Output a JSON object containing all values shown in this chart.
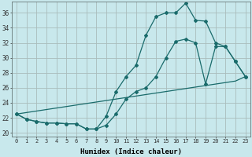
{
  "xlabel": "Humidex (Indice chaleur)",
  "xlim": [
    -0.5,
    23.5
  ],
  "ylim": [
    19.5,
    37.5
  ],
  "xticks": [
    0,
    1,
    2,
    3,
    4,
    5,
    6,
    7,
    8,
    9,
    10,
    11,
    12,
    13,
    14,
    15,
    16,
    17,
    18,
    19,
    20,
    21,
    22,
    23
  ],
  "yticks": [
    20,
    22,
    24,
    26,
    28,
    30,
    32,
    34,
    36
  ],
  "bg_color": "#c8e8ec",
  "grid_color": "#aabcbc",
  "line_color": "#1a6b6b",
  "line1_x": [
    0,
    1,
    2,
    3,
    4,
    5,
    6,
    7,
    8,
    9,
    10,
    11,
    12,
    13,
    14,
    15,
    16,
    17,
    18,
    19,
    20,
    21,
    22,
    23
  ],
  "line1_y": [
    22.5,
    21.8,
    21.5,
    21.3,
    21.3,
    21.2,
    21.2,
    20.5,
    20.5,
    22.2,
    25.5,
    27.5,
    29.0,
    33.0,
    35.5,
    36.0,
    36.0,
    37.3,
    35.0,
    34.9,
    32.0,
    31.5,
    29.5,
    27.5
  ],
  "line2_x": [
    0,
    1,
    2,
    3,
    4,
    5,
    6,
    7,
    8,
    9,
    10,
    11,
    12,
    13,
    14,
    15,
    16,
    17,
    18,
    19,
    20,
    21,
    22,
    23
  ],
  "line2_y": [
    22.5,
    21.8,
    21.5,
    21.3,
    21.3,
    21.2,
    21.2,
    20.5,
    20.5,
    21.0,
    22.5,
    24.5,
    25.5,
    26.0,
    27.5,
    30.0,
    32.2,
    32.5,
    32.0,
    26.5,
    31.5,
    31.5,
    29.5,
    27.5
  ],
  "line3_x": [
    0,
    1,
    2,
    3,
    4,
    5,
    6,
    7,
    8,
    9,
    10,
    11,
    12,
    13,
    14,
    15,
    16,
    17,
    18,
    19,
    20,
    21,
    22,
    23
  ],
  "line3_y": [
    22.5,
    22.7,
    22.9,
    23.1,
    23.3,
    23.5,
    23.7,
    23.9,
    24.1,
    24.3,
    24.5,
    24.7,
    24.9,
    25.1,
    25.3,
    25.5,
    25.7,
    25.9,
    26.1,
    26.3,
    26.5,
    26.7,
    26.9,
    27.5
  ]
}
